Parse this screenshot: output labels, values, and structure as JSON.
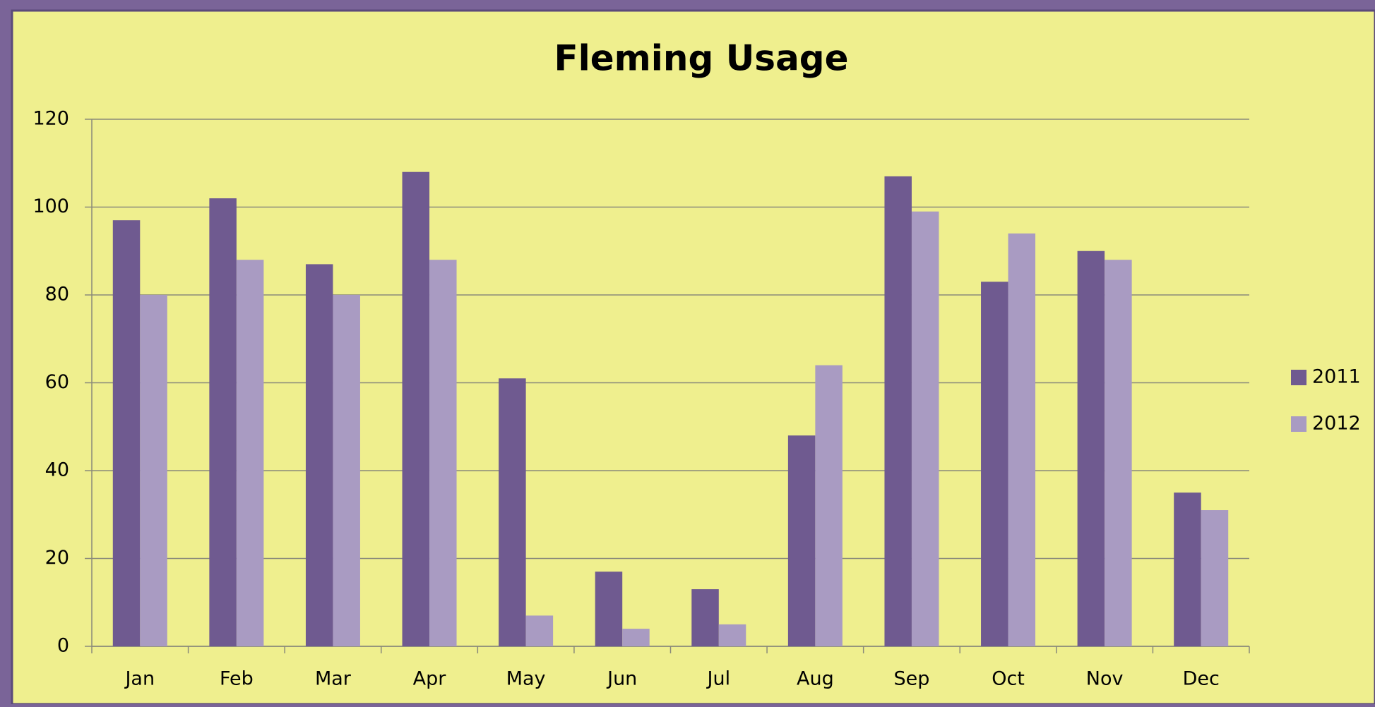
{
  "chart_data": {
    "type": "bar",
    "title": "Fleming Usage",
    "categories": [
      "Jan",
      "Feb",
      "Mar",
      "Apr",
      "May",
      "Jun",
      "Jul",
      "Aug",
      "Sep",
      "Oct",
      "Nov",
      "Dec"
    ],
    "series": [
      {
        "name": "2011",
        "color": "#6f5a90",
        "values": [
          97,
          102,
          87,
          108,
          61,
          17,
          13,
          48,
          107,
          83,
          90,
          35
        ]
      },
      {
        "name": "2012",
        "color": "#a99bc2",
        "values": [
          80,
          88,
          80,
          88,
          7,
          4,
          5,
          64,
          99,
          94,
          88,
          31
        ]
      }
    ],
    "ylim": [
      0,
      120
    ],
    "yticks": [
      0,
      20,
      40,
      60,
      80,
      100,
      120
    ],
    "grid": true,
    "legend": "right"
  }
}
